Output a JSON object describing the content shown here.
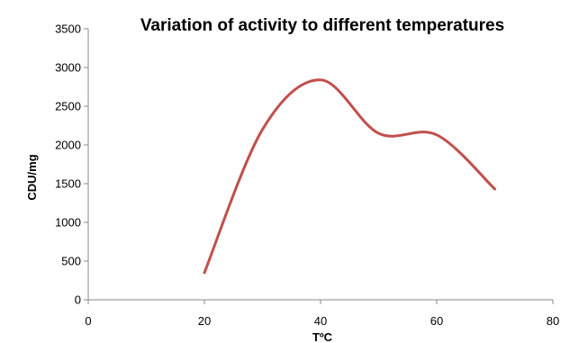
{
  "chart_data": {
    "type": "line",
    "title": "Variation of activity to different temperatures",
    "xlabel": "TºC",
    "ylabel": "CDU/mg",
    "xlim": [
      0,
      80
    ],
    "ylim": [
      0,
      3500
    ],
    "xticks": [
      "0",
      "20",
      "40",
      "60",
      "80"
    ],
    "yticks": [
      "0",
      "500",
      "1000",
      "1500",
      "2000",
      "2500",
      "3000",
      "3500"
    ],
    "grid": false,
    "legend": "none",
    "series": [
      {
        "color": "#C0504D",
        "smooth": true,
        "x": [
          20,
          30,
          40,
          50,
          60,
          70
        ],
        "y": [
          350,
          2200,
          2840,
          2150,
          2130,
          1430
        ]
      }
    ]
  }
}
